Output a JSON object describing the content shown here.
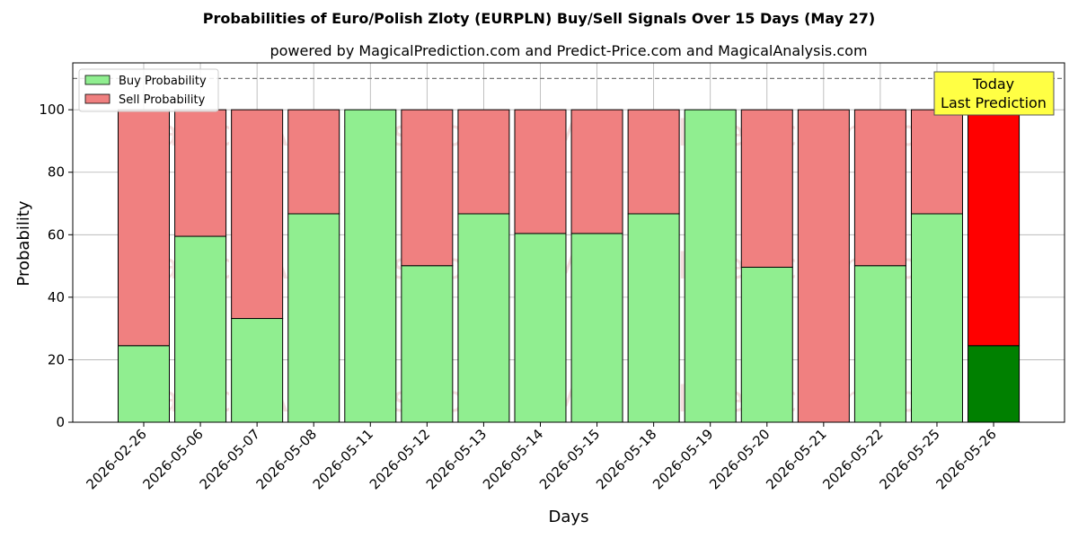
{
  "chart_data": {
    "type": "bar",
    "stacked": true,
    "title": "Probabilities of Euro/Polish Zloty (EURPLN) Buy/Sell Signals Over 15 Days (May 27)",
    "subtitle": "powered by MagicalPrediction.com and Predict-Price.com and MagicalAnalysis.com",
    "xlabel": "Days",
    "ylabel": "Probability",
    "ylim": [
      0,
      115
    ],
    "yticks": [
      0,
      20,
      40,
      60,
      80,
      100
    ],
    "grid": true,
    "legend_position": "top-left",
    "reference_line": 110,
    "categories": [
      "2026-02-26",
      "2026-05-06",
      "2026-05-07",
      "2026-05-08",
      "2026-05-11",
      "2026-05-12",
      "2026-05-13",
      "2026-05-14",
      "2026-05-15",
      "2026-05-18",
      "2026-05-19",
      "2026-05-20",
      "2026-05-21",
      "2026-05-22",
      "2026-05-25",
      "2026-05-26"
    ],
    "series": [
      {
        "name": "Buy Probability",
        "color": "#90ee90",
        "values": [
          24.5,
          59.5,
          33.2,
          66.7,
          100,
          50.1,
          66.7,
          60.4,
          60.4,
          66.7,
          100,
          49.6,
          0,
          50.1,
          66.7,
          24.5
        ]
      },
      {
        "name": "Sell Probability",
        "color": "#f08080",
        "values": [
          75.5,
          40.5,
          66.8,
          33.3,
          0,
          49.9,
          33.3,
          39.6,
          39.6,
          33.3,
          0,
          50.4,
          100,
          49.9,
          33.3,
          75.5
        ]
      }
    ],
    "highlight": {
      "index": 15,
      "buy_color": "#008000",
      "sell_color": "#ff0000"
    },
    "annotation": {
      "line1": "Today",
      "line2": "Last Prediction",
      "color": "#ffff44"
    },
    "watermarks": [
      "MagicalAnalysis.com",
      "MagicalPrediction.com"
    ]
  }
}
